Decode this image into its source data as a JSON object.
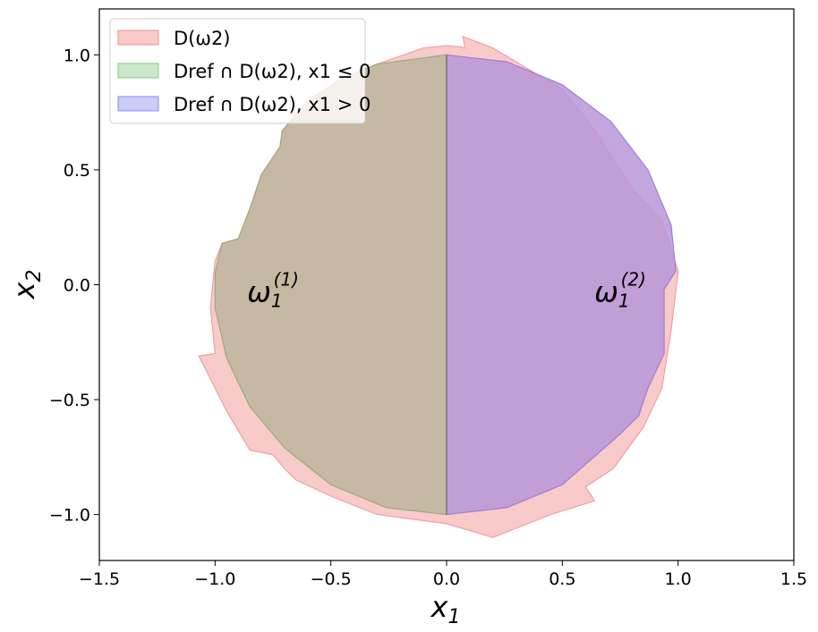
{
  "chart_data": {
    "type": "area",
    "title": "",
    "xlabel": "x1",
    "ylabel": "x2",
    "xlim": [
      -1.5,
      1.5
    ],
    "ylim": [
      -1.2,
      1.2
    ],
    "xticks": [
      -1.5,
      -1.0,
      -0.5,
      0.0,
      0.5,
      1.0,
      1.5
    ],
    "yticks": [
      -1.0,
      -0.5,
      0.0,
      0.5,
      1.0
    ],
    "xtick_labels": [
      "−1.5",
      "−1.0",
      "−0.5",
      "0.0",
      "0.5",
      "1.0",
      "1.5"
    ],
    "ytick_labels": [
      "−1.0",
      "−0.5",
      "0.0",
      "0.5",
      "1.0"
    ],
    "grid": false,
    "legend_position": "top-left",
    "legend": [
      {
        "label": "D(ω2)",
        "color": "#f4a6a6"
      },
      {
        "label": "Dref ∩ D(ω2), x1 ≤ 0",
        "color": "#a8d8a8"
      },
      {
        "label": "Dref ∩ D(ω2), x1 > 0",
        "color": "#a8a8f4"
      }
    ],
    "series": [
      {
        "name": "D(ω2)",
        "color": "#f4a6a6",
        "outline": [
          [
            0.0,
            1.04
          ],
          [
            0.06,
            1.035
          ],
          [
            0.08,
            1.03
          ],
          [
            0.07,
            1.08
          ],
          [
            0.2,
            1.03
          ],
          [
            0.3,
            0.97
          ],
          [
            0.5,
            0.85
          ],
          [
            0.65,
            0.66
          ],
          [
            0.8,
            0.42
          ],
          [
            0.93,
            0.28
          ],
          [
            1.0,
            0.06
          ],
          [
            0.97,
            -0.2
          ],
          [
            0.93,
            -0.45
          ],
          [
            0.85,
            -0.62
          ],
          [
            0.72,
            -0.8
          ],
          [
            0.6,
            -0.88
          ],
          [
            0.64,
            -0.94
          ],
          [
            0.45,
            -1.0
          ],
          [
            0.3,
            -1.06
          ],
          [
            0.2,
            -1.1
          ],
          [
            0.1,
            -1.07
          ],
          [
            0.0,
            -1.04
          ],
          [
            -0.3,
            -1.0
          ],
          [
            -0.5,
            -0.92
          ],
          [
            -0.65,
            -0.85
          ],
          [
            -0.7,
            -0.8
          ],
          [
            -0.75,
            -0.74
          ],
          [
            -0.85,
            -0.72
          ],
          [
            -0.95,
            -0.55
          ],
          [
            -1.07,
            -0.31
          ],
          [
            -1.0,
            -0.3
          ],
          [
            -1.02,
            -0.1
          ],
          [
            -1.0,
            0.1
          ],
          [
            -0.97,
            0.18
          ],
          [
            -0.9,
            0.2
          ],
          [
            -0.85,
            0.33
          ],
          [
            -0.8,
            0.48
          ],
          [
            -0.72,
            0.6
          ],
          [
            -0.7,
            0.68
          ],
          [
            -0.6,
            0.8
          ],
          [
            -0.45,
            0.9
          ],
          [
            -0.3,
            0.96
          ],
          [
            -0.1,
            1.03
          ]
        ]
      },
      {
        "name": "Dref ∩ D(ω2), x1 ≤ 0",
        "color": "#a8d8a8",
        "outline": [
          [
            0.0,
            1.0
          ],
          [
            -0.3,
            0.96
          ],
          [
            -0.45,
            0.9
          ],
          [
            -0.6,
            0.8
          ],
          [
            -0.71,
            0.67
          ],
          [
            -0.72,
            0.6
          ],
          [
            -0.8,
            0.48
          ],
          [
            -0.85,
            0.33
          ],
          [
            -0.9,
            0.2
          ],
          [
            -0.97,
            0.18
          ],
          [
            -1.0,
            0.05
          ],
          [
            -1.0,
            -0.1
          ],
          [
            -0.95,
            -0.32
          ],
          [
            -0.85,
            -0.53
          ],
          [
            -0.7,
            -0.71
          ],
          [
            -0.5,
            -0.87
          ],
          [
            -0.26,
            -0.97
          ],
          [
            0.0,
            -1.0
          ]
        ]
      },
      {
        "name": "Dref ∩ D(ω2), x1 > 0",
        "color": "#a8a8f4",
        "outline": [
          [
            0.0,
            1.0
          ],
          [
            0.26,
            0.97
          ],
          [
            0.5,
            0.87
          ],
          [
            0.71,
            0.71
          ],
          [
            0.87,
            0.5
          ],
          [
            0.97,
            0.26
          ],
          [
            0.99,
            0.06
          ],
          [
            0.94,
            -0.02
          ],
          [
            0.94,
            -0.3
          ],
          [
            0.87,
            -0.45
          ],
          [
            0.83,
            -0.57
          ],
          [
            0.75,
            -0.65
          ],
          [
            0.5,
            -0.87
          ],
          [
            0.26,
            -0.97
          ],
          [
            0.0,
            -1.0
          ]
        ]
      }
    ],
    "annotations": [
      {
        "text": "ω",
        "sub": "1",
        "sup": "(1)",
        "x": -0.75,
        "y": -0.02
      },
      {
        "text": "ω",
        "sub": "1",
        "sup": "(2)",
        "x": 0.75,
        "y": -0.02
      }
    ]
  }
}
